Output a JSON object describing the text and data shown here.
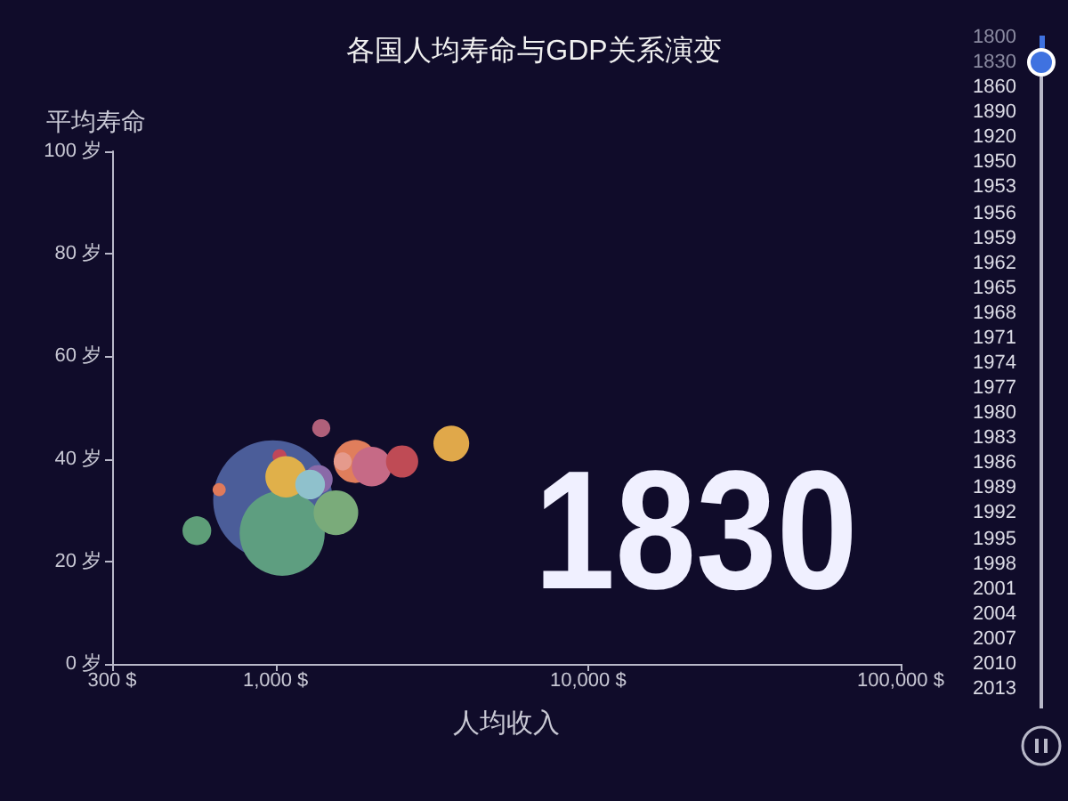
{
  "chart_data": {
    "type": "bubble",
    "title": "各国人均寿命与GDP关系演变",
    "xlabel": "人均收入",
    "ylabel": "平均寿命",
    "x": [
      980,
      1030,
      660,
      1370,
      1050,
      560,
      1080,
      1290,
      1400,
      1560,
      1800,
      2030,
      1640,
      2540,
      3650
    ],
    "values": [
      32,
      40.5,
      34,
      36,
      25.5,
      26,
      36.5,
      35,
      46,
      29.5,
      39.5,
      38.5,
      39.5,
      39.5,
      43
    ],
    "sizes": [
      1,
      0.014,
      0.012,
      0.058,
      0.51,
      0.058,
      0.12,
      0.062,
      0.023,
      0.14,
      0.13,
      0.11,
      0.023,
      0.073,
      0.09
    ],
    "colors": [
      "#4b5d99",
      "#c0475a",
      "#e07a5a",
      "#8a6aa8",
      "#5e9e80",
      "#5e9e78",
      "#e0b04a",
      "#8fc1cc",
      "#b0607a",
      "#7aab7a",
      "#e07e5c",
      "#c66a86",
      "#e59a8c",
      "#bf4b55",
      "#e0a84a"
    ],
    "marker": "circle",
    "log": "x",
    "grid": false,
    "xlim": [
      300,
      100000
    ],
    "xticks": [
      {
        "value": 300,
        "label": "300 $"
      },
      {
        "value": 1000,
        "label": "1,000 $"
      },
      {
        "value": 10000,
        "label": "10,000 $"
      },
      {
        "value": 100000,
        "label": "100,000 $"
      }
    ],
    "ylim": [
      0,
      100
    ],
    "yticks": [
      {
        "value": 0,
        "label": "0 岁"
      },
      {
        "value": 20,
        "label": "20 岁"
      },
      {
        "value": 40,
        "label": "40 岁"
      },
      {
        "value": 60,
        "label": "60 岁"
      },
      {
        "value": 80,
        "label": "80 岁"
      },
      {
        "value": 100,
        "label": "100 岁"
      }
    ],
    "annotations": [
      "1830",
      "1800",
      "1830",
      "1860",
      "1890",
      "1920",
      "1950",
      "1953",
      "1956",
      "1959",
      "1962",
      "1965",
      "1968",
      "1971",
      "1974",
      "1977",
      "1980",
      "1983",
      "1986",
      "1989",
      "1992",
      "1995",
      "1998",
      "2001",
      "2004",
      "2007",
      "2010",
      "2013"
    ]
  }
}
